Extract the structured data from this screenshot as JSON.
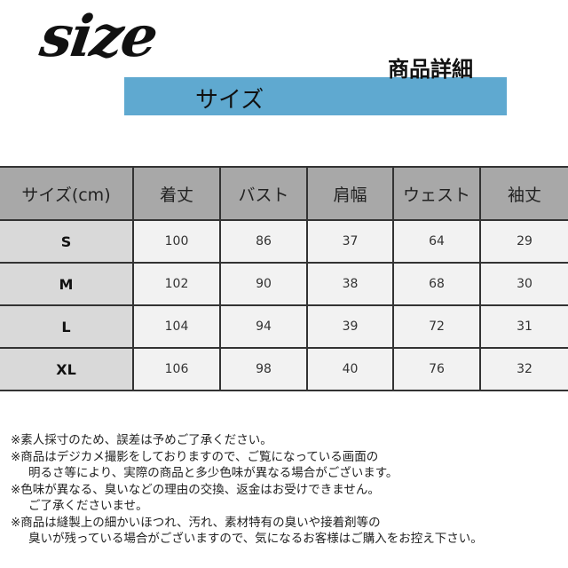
{
  "header": {
    "logo_text": "size",
    "subtitle": "サイズ",
    "section_title": "商品詳細",
    "band_color": "#5fa9d0"
  },
  "table": {
    "columns": [
      "サイズ(cm)",
      "着丈",
      "バスト",
      "肩幅",
      "ウェスト",
      "袖丈"
    ],
    "rows": [
      {
        "size": "S",
        "values": [
          "100",
          "86",
          "37",
          "64",
          "29"
        ]
      },
      {
        "size": "M",
        "values": [
          "102",
          "90",
          "38",
          "68",
          "30"
        ]
      },
      {
        "size": "L",
        "values": [
          "104",
          "94",
          "39",
          "72",
          "31"
        ]
      },
      {
        "size": "XL",
        "values": [
          "106",
          "98",
          "40",
          "76",
          "32"
        ]
      }
    ],
    "header_color": "#a8a8a8",
    "size_col_color": "#d9d9d9",
    "cell_color": "#f2f2f2"
  },
  "notes": [
    "※素人採寸のため、誤差は予めご了承ください。",
    "※商品はデジカメ撮影をしておりますので、ご覧になっている画面の",
    "明るさ等により、実際の商品と多少色味が異なる場合がございます。",
    "※色味が異なる、臭いなどの理由の交換、返金はお受けできません。",
    "ご了承くださいませ。",
    "※商品は縫製上の細かいほつれ、汚れ、素材特有の臭いや接着剤等の",
    "臭いが残っている場合がございますので、気になるお客様はご購入をお控え下さい。"
  ]
}
